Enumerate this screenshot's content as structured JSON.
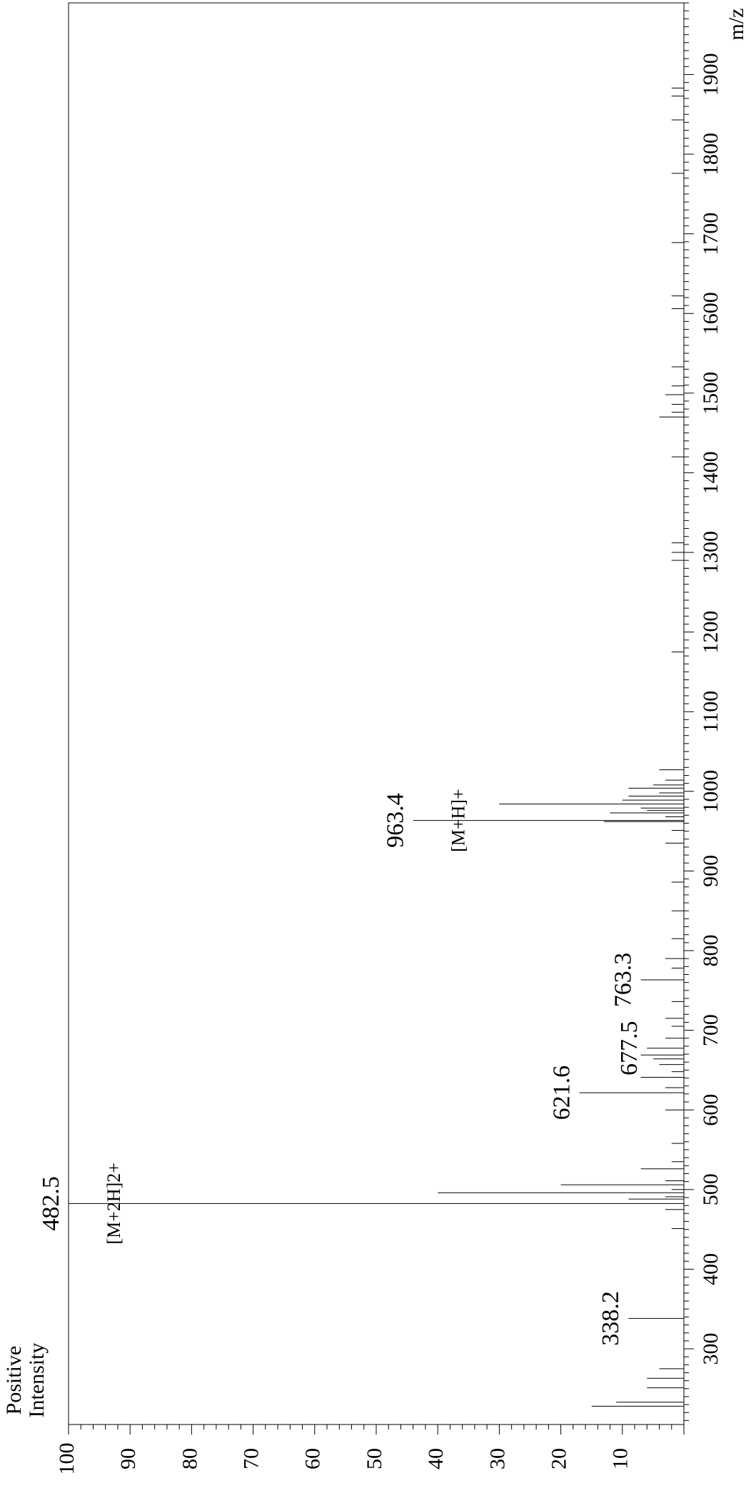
{
  "chart_data": {
    "type": "bar",
    "title": "",
    "xlabel": "m/z",
    "ylabel": "Positive Intensity",
    "ylabel_lines": [
      "Positive",
      "Intensity"
    ],
    "xlim": [
      205,
      1990
    ],
    "ylim": [
      0,
      100
    ],
    "x_ticks": [
      300,
      400,
      500,
      600,
      700,
      800,
      900,
      1000,
      1100,
      1200,
      1300,
      1400,
      1500,
      1600,
      1700,
      1800,
      1900
    ],
    "y_ticks": [
      10,
      20,
      30,
      40,
      50,
      60,
      70,
      80,
      90,
      100
    ],
    "grid": false,
    "legend": "none",
    "series": [
      {
        "x": [
          228,
          233,
          251,
          263,
          275,
          338.2,
          451,
          475,
          482.5,
          488,
          491,
          496,
          500,
          506,
          511,
          526,
          535,
          558,
          600,
          621.6,
          628,
          641,
          648,
          657,
          664,
          669,
          677.5,
          690,
          705,
          715,
          736,
          763.3,
          778,
          790,
          815,
          850,
          886,
          935,
          951,
          962,
          963.4,
          968,
          973,
          976,
          979,
          984,
          989,
          994,
          998,
          1004,
          1008,
          1014,
          1027,
          1175,
          1290,
          1300,
          1312,
          1420,
          1470,
          1476,
          1486,
          1498,
          1509,
          1533,
          1606,
          1622,
          1689,
          1776,
          1843,
          1873,
          1883
        ],
        "values": [
          15,
          11,
          6,
          6,
          4,
          9,
          2,
          3,
          100,
          9,
          3,
          40,
          2,
          20,
          3,
          7,
          2,
          2,
          3,
          17,
          3,
          7,
          2,
          4,
          5,
          7,
          6,
          3,
          2,
          3,
          2,
          7,
          2,
          3,
          2,
          2,
          2,
          3,
          2,
          13,
          44,
          3,
          12,
          6,
          7,
          30,
          10,
          9,
          4,
          9,
          5,
          3,
          4,
          2,
          2,
          2,
          2,
          2,
          4,
          2,
          2,
          3,
          2,
          2,
          2,
          2,
          2,
          2,
          2,
          2,
          2
        ]
      }
    ],
    "annotations": [
      {
        "text": "338.2",
        "x": 338.2
      },
      {
        "text": "482.5",
        "x": 482.5
      },
      {
        "text": "[M+2H]2+",
        "x": 482.5
      },
      {
        "text": "621.6",
        "x": 621.6
      },
      {
        "text": "677.5",
        "x": 677.5
      },
      {
        "text": "763.3",
        "x": 763.3
      },
      {
        "text": "963.4",
        "x": 963.4
      },
      {
        "text": "[M+H]+",
        "x": 963.4
      }
    ]
  }
}
